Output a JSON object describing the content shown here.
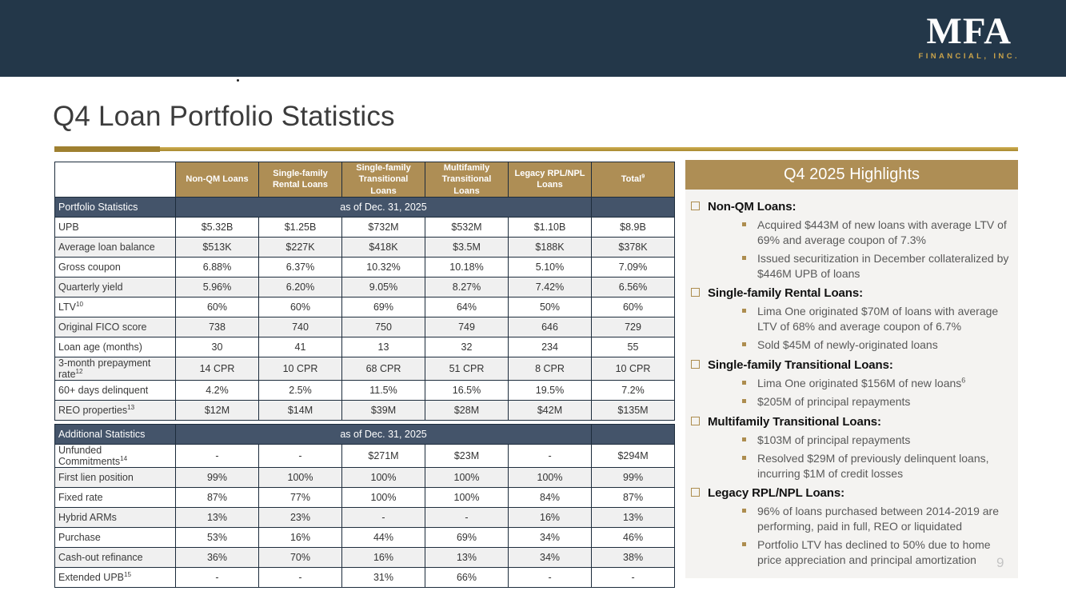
{
  "colors": {
    "navy": "#233749",
    "gold": "#ae8e55",
    "band_slate": "#44546a",
    "panel_bg": "#f4f3f1",
    "rule_dark": "#9f8030",
    "rule_light": "#b9993f",
    "alt_row": "#f0f0f0",
    "body_gray": "#595959"
  },
  "banner": {
    "logo_main": "MFA",
    "logo_sub": "FINANCIAL, INC."
  },
  "page": {
    "title": "Q4 Loan Portfolio Statistics",
    "page_number": "9"
  },
  "columns": [
    {
      "text": "Non-QM Loans"
    },
    {
      "text": "Single-family Rental Loans"
    },
    {
      "text": "Single-family Transitional Loans"
    },
    {
      "text": "Multifamily Transitional Loans"
    },
    {
      "text": "Legacy RPL/NPL Loans"
    },
    {
      "text": "Total",
      "sup": "9"
    }
  ],
  "table1": {
    "section_label": "Portfolio Statistics",
    "as_of": "as of Dec. 31, 2025",
    "rows": [
      {
        "label": "UPB",
        "values": [
          "$5.32B",
          "$1.25B",
          "$732M",
          "$532M",
          "$1.10B",
          "$8.9B"
        ]
      },
      {
        "label": "Average loan balance",
        "values": [
          "$513K",
          "$227K",
          "$418K",
          "$3.5M",
          "$188K",
          "$378K"
        ]
      },
      {
        "label": "Gross coupon",
        "values": [
          "6.88%",
          "6.37%",
          "10.32%",
          "10.18%",
          "5.10%",
          "7.09%"
        ]
      },
      {
        "label": "Quarterly yield",
        "values": [
          "5.96%",
          "6.20%",
          "9.05%",
          "8.27%",
          "7.42%",
          "6.56%"
        ]
      },
      {
        "label": "LTV",
        "sup": "10",
        "values": [
          "60%",
          "60%",
          "69%",
          "64%",
          "50%",
          "60%"
        ]
      },
      {
        "label": "Original FICO score",
        "values": [
          "738",
          "740",
          "750",
          "749",
          "646",
          "729"
        ]
      },
      {
        "label": "Loan age (months)",
        "values": [
          "30",
          "41",
          "13",
          "32",
          "234",
          "55"
        ]
      },
      {
        "label": "3-month prepayment rate",
        "sup": "12",
        "values": [
          "14 CPR",
          "10 CPR",
          "68 CPR",
          "51 CPR",
          "8 CPR",
          "10 CPR"
        ]
      },
      {
        "label": "60+ days delinquent",
        "values": [
          "4.2%",
          "2.5%",
          "11.5%",
          "16.5%",
          "19.5%",
          "7.2%"
        ]
      },
      {
        "label": "REO properties",
        "sup": "13",
        "values": [
          "$12M",
          "$14M",
          "$39M",
          "$28M",
          "$42M",
          "$135M"
        ]
      }
    ]
  },
  "table2": {
    "section_label": "Additional Statistics",
    "as_of": "as of Dec. 31, 2025",
    "rows": [
      {
        "label": "Unfunded Commitments",
        "sup": "14",
        "values": [
          "-",
          "-",
          "$271M",
          "$23M",
          "-",
          "$294M"
        ]
      },
      {
        "label": "First lien position",
        "values": [
          "99%",
          "100%",
          "100%",
          "100%",
          "100%",
          "99%"
        ]
      },
      {
        "label": "Fixed rate",
        "values": [
          "87%",
          "77%",
          "100%",
          "100%",
          "84%",
          "87%"
        ]
      },
      {
        "label": "Hybrid ARMs",
        "values": [
          "13%",
          "23%",
          "-",
          "-",
          "16%",
          "13%"
        ]
      },
      {
        "label": "Purchase",
        "values": [
          "53%",
          "16%",
          "44%",
          "69%",
          "34%",
          "46%"
        ]
      },
      {
        "label": "Cash-out refinance",
        "values": [
          "36%",
          "70%",
          "16%",
          "13%",
          "34%",
          "38%"
        ]
      },
      {
        "label": "Extended UPB",
        "sup": "15",
        "values": [
          "-",
          "-",
          "31%",
          "66%",
          "-",
          "-"
        ]
      }
    ]
  },
  "highlights": {
    "title": "Q4 2025 Highlights",
    "groups": [
      {
        "heading": "Non-QM Loans:",
        "items": [
          {
            "text": "Acquired $443M of new loans with average LTV of 69% and average coupon of 7.3%"
          },
          {
            "text": "Issued securitization in December collateralized by $446M UPB of loans"
          }
        ]
      },
      {
        "heading": "Single-family Rental Loans:",
        "items": [
          {
            "text": "Lima One originated $70M of loans with average LTV of 68% and average coupon of 6.7%"
          },
          {
            "text": "Sold $45M of newly-originated loans"
          }
        ]
      },
      {
        "heading": "Single-family Transitional Loans:",
        "items": [
          {
            "text": "Lima One originated $156M of new loans",
            "sup": "6"
          },
          {
            "text": "$205M of principal repayments"
          }
        ]
      },
      {
        "heading": "Multifamily Transitional Loans:",
        "items": [
          {
            "text": "$103M of principal repayments"
          },
          {
            "text": "Resolved $29M of previously delinquent loans, incurring $1M of credit losses"
          }
        ]
      },
      {
        "heading": "Legacy RPL/NPL Loans:",
        "items": [
          {
            "text": "96% of loans purchased between 2014-2019 are performing, paid in full, REO or liquidated"
          },
          {
            "text": "Portfolio LTV has declined to 50% due to home price appreciation and principal amortization"
          }
        ]
      }
    ]
  }
}
